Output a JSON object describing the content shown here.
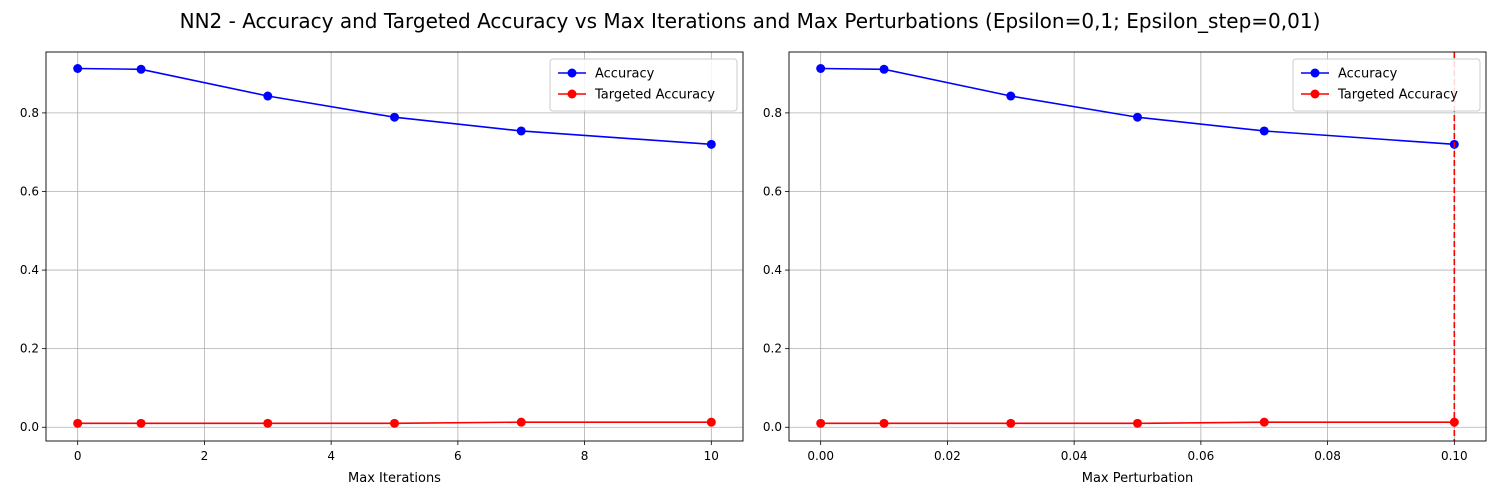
{
  "figure_title": "NN2 - Accuracy and Targeted Accuracy vs Max Iterations and Max Perturbations (Epsilon=0,1; Epsilon_step=0,01)",
  "colors": {
    "accuracy": "#0000ff",
    "targeted": "#ff0000",
    "grid": "#b0b0b0"
  },
  "chart_data": [
    {
      "type": "line",
      "xlabel": "Max Iterations",
      "ylabel": "",
      "xlim": [
        -0.5,
        10.5
      ],
      "ylim": [
        -0.035,
        0.955
      ],
      "xticks": [
        0,
        2,
        4,
        6,
        8,
        10
      ],
      "xtick_labels": [
        "0",
        "2",
        "4",
        "6",
        "8",
        "10"
      ],
      "yticks": [
        0.0,
        0.2,
        0.4,
        0.6,
        0.8
      ],
      "ytick_labels": [
        "0.0",
        "0.2",
        "0.4",
        "0.6",
        "0.8"
      ],
      "grid": true,
      "legend_position": "top-right",
      "x": [
        0,
        1,
        3,
        5,
        7,
        10
      ],
      "series": [
        {
          "name": "Accuracy",
          "color": "#0000ff",
          "values": [
            0.913,
            0.911,
            0.843,
            0.789,
            0.754,
            0.72
          ]
        },
        {
          "name": "Targeted Accuracy",
          "color": "#ff0000",
          "values": [
            0.01,
            0.01,
            0.01,
            0.01,
            0.013,
            0.013
          ]
        }
      ]
    },
    {
      "type": "line",
      "xlabel": "Max Perturbation",
      "ylabel": "",
      "xlim": [
        -0.005,
        0.105
      ],
      "ylim": [
        -0.035,
        0.955
      ],
      "xticks": [
        0.0,
        0.02,
        0.04,
        0.06,
        0.08,
        0.1
      ],
      "xtick_labels": [
        "0.00",
        "0.02",
        "0.04",
        "0.06",
        "0.08",
        "0.10"
      ],
      "yticks": [
        0.0,
        0.2,
        0.4,
        0.6,
        0.8
      ],
      "ytick_labels": [
        "0.0",
        "0.2",
        "0.4",
        "0.6",
        "0.8"
      ],
      "grid": true,
      "legend_position": "top-right",
      "vline": {
        "x": 0.1,
        "color": "#ff0000",
        "style": "dashed"
      },
      "x": [
        0.0,
        0.01,
        0.03,
        0.05,
        0.07,
        0.1
      ],
      "series": [
        {
          "name": "Accuracy",
          "color": "#0000ff",
          "values": [
            0.913,
            0.911,
            0.843,
            0.789,
            0.754,
            0.72
          ]
        },
        {
          "name": "Targeted Accuracy",
          "color": "#ff0000",
          "values": [
            0.01,
            0.01,
            0.01,
            0.01,
            0.013,
            0.013
          ]
        }
      ]
    }
  ]
}
